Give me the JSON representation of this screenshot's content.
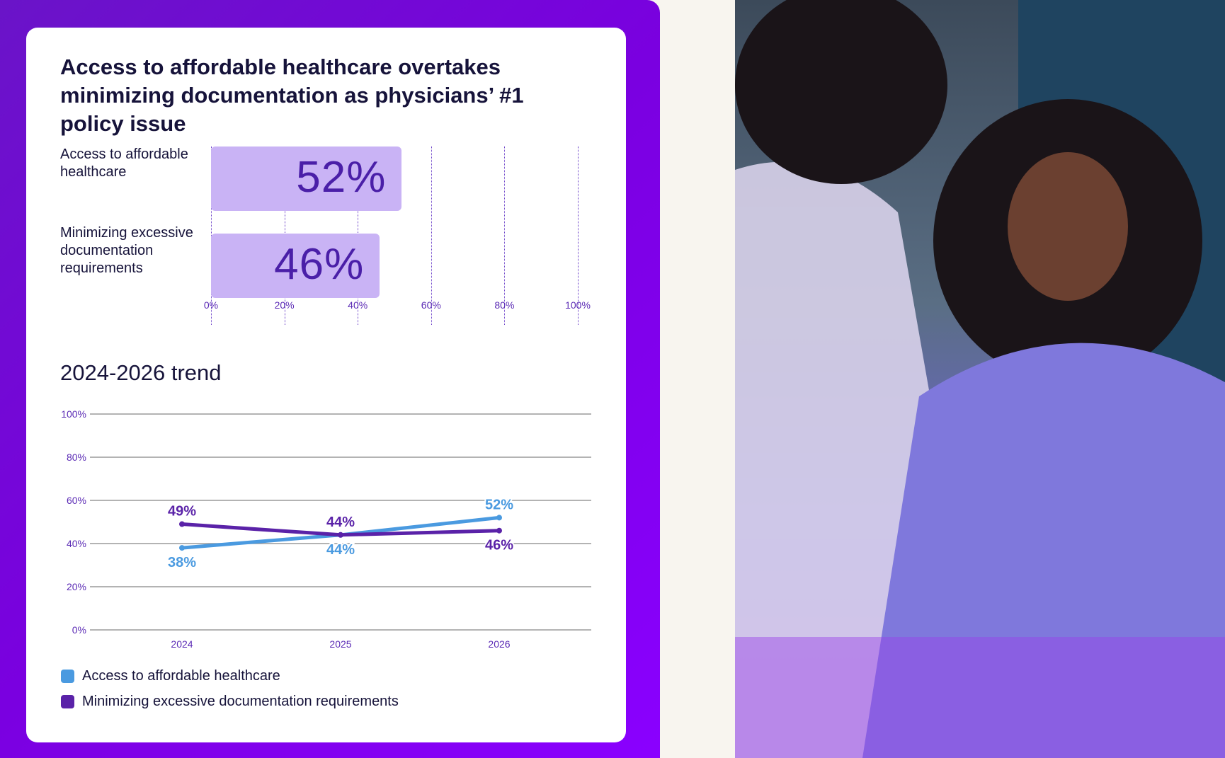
{
  "title": "Access to affordable healthcare overtakes minimizing documentation as physicians’ #1 policy issue",
  "chart_data": [
    {
      "type": "bar",
      "orientation": "horizontal",
      "categories": [
        "Access to affordable healthcare",
        "Minimizing excessive documentation requirements"
      ],
      "values": [
        52,
        46
      ],
      "value_labels": [
        "52%",
        "46%"
      ],
      "xlim": [
        0,
        100
      ],
      "xticks": [
        "0%",
        "20%",
        "40%",
        "60%",
        "80%",
        "100%"
      ],
      "grid": "vertical dotted",
      "bar_color": "#c9b3f5"
    },
    {
      "type": "line",
      "title": "2024-2026 trend",
      "x": [
        "2024",
        "2025",
        "2026"
      ],
      "ylim": [
        0,
        100
      ],
      "yticks": [
        "0%",
        "20%",
        "40%",
        "60%",
        "80%",
        "100%"
      ],
      "grid": "horizontal",
      "legend": "bottom-left",
      "series": [
        {
          "name": "Access to affordable healthcare",
          "values": [
            38,
            44,
            52
          ],
          "labels": [
            "38%",
            "44%",
            "52%"
          ],
          "color": "#4a9ae0"
        },
        {
          "name": "Minimizing excessive documentation requirements",
          "values": [
            49,
            44,
            46
          ],
          "labels": [
            "49%",
            "44%",
            "46%"
          ],
          "color": "#5a22a8"
        }
      ]
    }
  ],
  "colors": {
    "panel": "#7a00e0",
    "text": "#16133a",
    "axis_text": "#5b2bb5"
  },
  "photo": {
    "description_icon": "photo-doctor-patient"
  }
}
